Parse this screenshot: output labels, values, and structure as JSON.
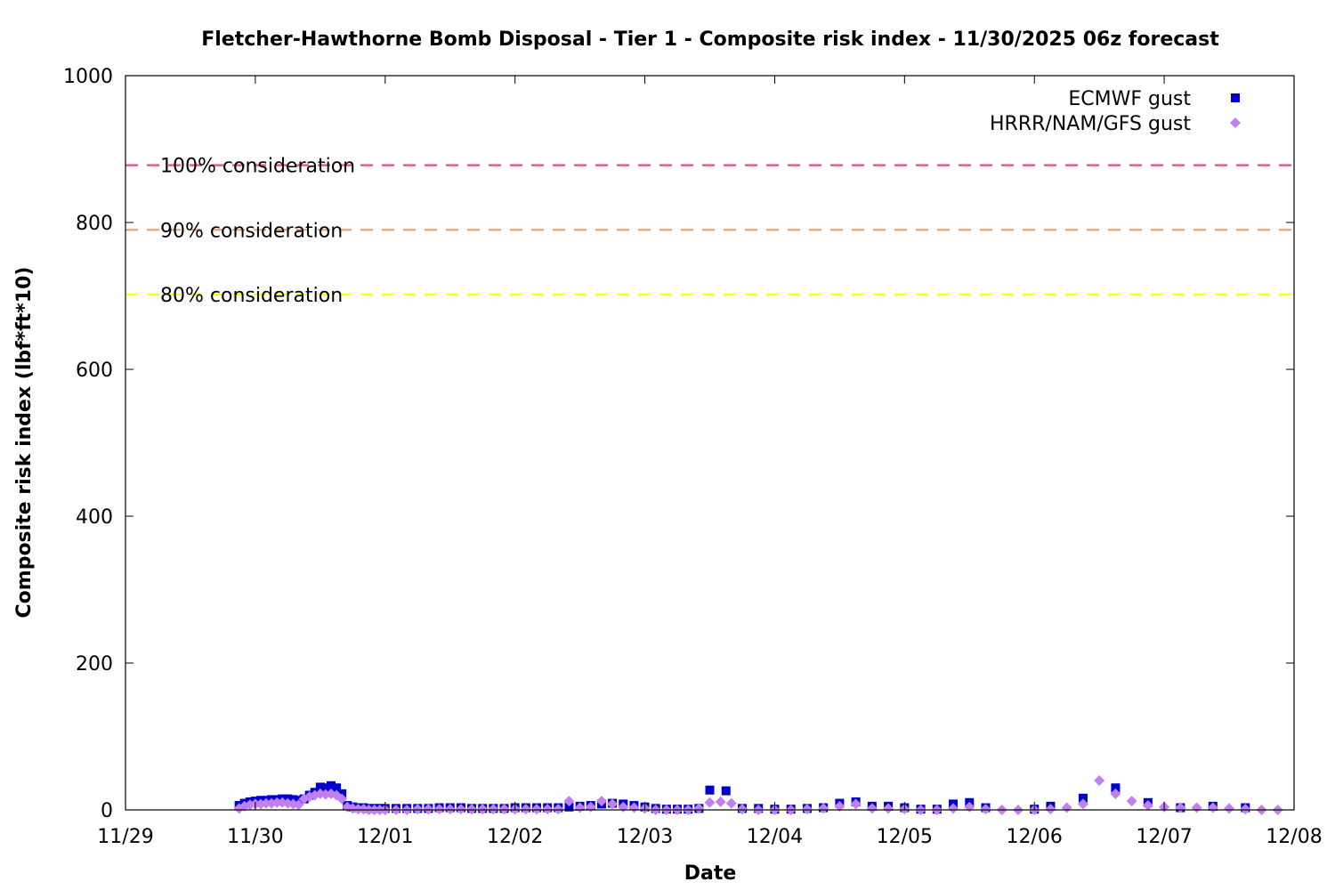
{
  "chart_data": {
    "type": "scatter",
    "title": "Fletcher-Hawthorne Bomb Disposal - Tier 1 - Composite risk index - 11/30/2025 06z forecast",
    "xlabel": "Date",
    "ylabel": "Composite risk index (lbf*ft*10)",
    "x_range": [
      "2025-11-29T00:00",
      "2025-12-08T00:00"
    ],
    "ylim": [
      0,
      1000
    ],
    "x_ticks": [
      "11/29",
      "11/30",
      "12/01",
      "12/02",
      "12/03",
      "12/04",
      "12/05",
      "12/06",
      "12/07",
      "12/08"
    ],
    "y_ticks": [
      "0",
      "200",
      "400",
      "600",
      "800",
      "1000"
    ],
    "grid": false,
    "legend_position": "top-right",
    "reference_lines": [
      {
        "label": "100% consideration",
        "value": 878,
        "color": "#e0607e"
      },
      {
        "label": "90% consideration",
        "value": 790,
        "color": "#f4a878"
      },
      {
        "label": "80% consideration",
        "value": 702,
        "color": "#ffff00"
      }
    ],
    "series": [
      {
        "name": "ECMWF gust",
        "marker": "square",
        "color": "#0000cc",
        "points": [
          [
            "2025-11-29T21:00",
            6
          ],
          [
            "2025-11-29T22:00",
            9
          ],
          [
            "2025-11-29T23:00",
            11
          ],
          [
            "2025-11-30T00:00",
            12
          ],
          [
            "2025-11-30T01:00",
            13
          ],
          [
            "2025-11-30T02:00",
            13
          ],
          [
            "2025-11-30T03:00",
            14
          ],
          [
            "2025-11-30T04:00",
            14
          ],
          [
            "2025-11-30T05:00",
            15
          ],
          [
            "2025-11-30T06:00",
            15
          ],
          [
            "2025-11-30T07:00",
            14
          ],
          [
            "2025-11-30T08:00",
            13
          ],
          [
            "2025-11-30T09:00",
            15
          ],
          [
            "2025-11-30T10:00",
            20
          ],
          [
            "2025-11-30T11:00",
            24
          ],
          [
            "2025-11-30T12:00",
            31
          ],
          [
            "2025-11-30T13:00",
            30
          ],
          [
            "2025-11-30T14:00",
            33
          ],
          [
            "2025-11-30T15:00",
            30
          ],
          [
            "2025-11-30T16:00",
            22
          ],
          [
            "2025-11-30T17:00",
            6
          ],
          [
            "2025-11-30T18:00",
            4
          ],
          [
            "2025-11-30T19:00",
            3
          ],
          [
            "2025-11-30T20:00",
            3
          ],
          [
            "2025-11-30T21:00",
            2
          ],
          [
            "2025-11-30T22:00",
            2
          ],
          [
            "2025-11-30T23:00",
            2
          ],
          [
            "2025-12-01T00:00",
            2
          ],
          [
            "2025-12-01T02:00",
            2
          ],
          [
            "2025-12-01T04:00",
            2
          ],
          [
            "2025-12-01T06:00",
            2
          ],
          [
            "2025-12-01T08:00",
            2
          ],
          [
            "2025-12-01T10:00",
            3
          ],
          [
            "2025-12-01T12:00",
            3
          ],
          [
            "2025-12-01T14:00",
            3
          ],
          [
            "2025-12-01T16:00",
            2
          ],
          [
            "2025-12-01T18:00",
            2
          ],
          [
            "2025-12-01T20:00",
            2
          ],
          [
            "2025-12-01T22:00",
            2
          ],
          [
            "2025-12-02T00:00",
            3
          ],
          [
            "2025-12-02T02:00",
            3
          ],
          [
            "2025-12-02T04:00",
            3
          ],
          [
            "2025-12-02T06:00",
            3
          ],
          [
            "2025-12-02T08:00",
            3
          ],
          [
            "2025-12-02T10:00",
            4
          ],
          [
            "2025-12-02T12:00",
            5
          ],
          [
            "2025-12-02T14:00",
            6
          ],
          [
            "2025-12-02T16:00",
            8
          ],
          [
            "2025-12-02T18:00",
            9
          ],
          [
            "2025-12-02T20:00",
            8
          ],
          [
            "2025-12-02T22:00",
            6
          ],
          [
            "2025-12-03T00:00",
            4
          ],
          [
            "2025-12-03T02:00",
            2
          ],
          [
            "2025-12-03T04:00",
            1
          ],
          [
            "2025-12-03T06:00",
            1
          ],
          [
            "2025-12-03T08:00",
            1
          ],
          [
            "2025-12-03T10:00",
            2
          ],
          [
            "2025-12-03T12:00",
            27
          ],
          [
            "2025-12-03T15:00",
            26
          ],
          [
            "2025-12-03T18:00",
            2
          ],
          [
            "2025-12-03T21:00",
            2
          ],
          [
            "2025-12-04T00:00",
            1
          ],
          [
            "2025-12-04T03:00",
            1
          ],
          [
            "2025-12-04T06:00",
            2
          ],
          [
            "2025-12-04T09:00",
            3
          ],
          [
            "2025-12-04T12:00",
            9
          ],
          [
            "2025-12-04T15:00",
            11
          ],
          [
            "2025-12-04T18:00",
            5
          ],
          [
            "2025-12-04T21:00",
            5
          ],
          [
            "2025-12-05T00:00",
            3
          ],
          [
            "2025-12-05T03:00",
            1
          ],
          [
            "2025-12-05T06:00",
            1
          ],
          [
            "2025-12-05T09:00",
            8
          ],
          [
            "2025-12-05T12:00",
            10
          ],
          [
            "2025-12-05T15:00",
            3
          ],
          [
            "2025-12-06T00:00",
            1
          ],
          [
            "2025-12-06T03:00",
            5
          ],
          [
            "2025-12-06T09:00",
            16
          ],
          [
            "2025-12-06T15:00",
            30
          ],
          [
            "2025-12-06T21:00",
            10
          ],
          [
            "2025-12-07T03:00",
            3
          ],
          [
            "2025-12-07T09:00",
            5
          ],
          [
            "2025-12-07T15:00",
            3
          ]
        ]
      },
      {
        "name": "HRRR/NAM/GFS gust",
        "marker": "diamond",
        "color": "#c080f0",
        "points": [
          [
            "2025-11-29T21:00",
            2
          ],
          [
            "2025-11-29T22:00",
            5
          ],
          [
            "2025-11-29T23:00",
            7
          ],
          [
            "2025-11-30T00:00",
            8
          ],
          [
            "2025-11-30T01:00",
            8
          ],
          [
            "2025-11-30T02:00",
            9
          ],
          [
            "2025-11-30T03:00",
            9
          ],
          [
            "2025-11-30T04:00",
            10
          ],
          [
            "2025-11-30T05:00",
            10
          ],
          [
            "2025-11-30T06:00",
            9
          ],
          [
            "2025-11-30T07:00",
            8
          ],
          [
            "2025-11-30T08:00",
            7
          ],
          [
            "2025-11-30T09:00",
            15
          ],
          [
            "2025-11-30T10:00",
            18
          ],
          [
            "2025-11-30T11:00",
            20
          ],
          [
            "2025-11-30T12:00",
            22
          ],
          [
            "2025-11-30T13:00",
            21
          ],
          [
            "2025-11-30T14:00",
            22
          ],
          [
            "2025-11-30T15:00",
            20
          ],
          [
            "2025-11-30T16:00",
            15
          ],
          [
            "2025-11-30T17:00",
            4
          ],
          [
            "2025-11-30T18:00",
            2
          ],
          [
            "2025-11-30T19:00",
            1
          ],
          [
            "2025-11-30T20:00",
            1
          ],
          [
            "2025-11-30T21:00",
            0
          ],
          [
            "2025-11-30T22:00",
            0
          ],
          [
            "2025-11-30T23:00",
            0
          ],
          [
            "2025-12-01T00:00",
            0
          ],
          [
            "2025-12-01T02:00",
            0
          ],
          [
            "2025-12-01T04:00",
            0
          ],
          [
            "2025-12-01T06:00",
            1
          ],
          [
            "2025-12-01T08:00",
            1
          ],
          [
            "2025-12-01T10:00",
            1
          ],
          [
            "2025-12-01T12:00",
            1
          ],
          [
            "2025-12-01T14:00",
            1
          ],
          [
            "2025-12-01T16:00",
            1
          ],
          [
            "2025-12-01T18:00",
            1
          ],
          [
            "2025-12-01T20:00",
            1
          ],
          [
            "2025-12-01T22:00",
            1
          ],
          [
            "2025-12-02T00:00",
            1
          ],
          [
            "2025-12-02T02:00",
            1
          ],
          [
            "2025-12-02T04:00",
            1
          ],
          [
            "2025-12-02T06:00",
            1
          ],
          [
            "2025-12-02T08:00",
            1
          ],
          [
            "2025-12-02T10:00",
            12
          ],
          [
            "2025-12-02T12:00",
            3
          ],
          [
            "2025-12-02T14:00",
            4
          ],
          [
            "2025-12-02T16:00",
            12
          ],
          [
            "2025-12-02T18:00",
            8
          ],
          [
            "2025-12-02T20:00",
            4
          ],
          [
            "2025-12-02T22:00",
            3
          ],
          [
            "2025-12-03T00:00",
            2
          ],
          [
            "2025-12-03T02:00",
            0
          ],
          [
            "2025-12-03T04:00",
            0
          ],
          [
            "2025-12-03T06:00",
            0
          ],
          [
            "2025-12-03T08:00",
            0
          ],
          [
            "2025-12-03T10:00",
            2
          ],
          [
            "2025-12-03T12:00",
            10
          ],
          [
            "2025-12-03T14:00",
            11
          ],
          [
            "2025-12-03T16:00",
            9
          ],
          [
            "2025-12-03T18:00",
            1
          ],
          [
            "2025-12-03T21:00",
            0
          ],
          [
            "2025-12-04T00:00",
            0
          ],
          [
            "2025-12-04T03:00",
            0
          ],
          [
            "2025-12-04T06:00",
            1
          ],
          [
            "2025-12-04T09:00",
            2
          ],
          [
            "2025-12-04T12:00",
            5
          ],
          [
            "2025-12-04T15:00",
            8
          ],
          [
            "2025-12-04T18:00",
            2
          ],
          [
            "2025-12-04T21:00",
            2
          ],
          [
            "2025-12-05T00:00",
            1
          ],
          [
            "2025-12-05T03:00",
            0
          ],
          [
            "2025-12-05T06:00",
            0
          ],
          [
            "2025-12-05T09:00",
            2
          ],
          [
            "2025-12-05T12:00",
            4
          ],
          [
            "2025-12-05T15:00",
            1
          ],
          [
            "2025-12-05T18:00",
            0
          ],
          [
            "2025-12-05T21:00",
            0
          ],
          [
            "2025-12-06T00:00",
            0
          ],
          [
            "2025-12-06T03:00",
            1
          ],
          [
            "2025-12-06T06:00",
            3
          ],
          [
            "2025-12-06T09:00",
            8
          ],
          [
            "2025-12-06T12:00",
            40
          ],
          [
            "2025-12-06T15:00",
            22
          ],
          [
            "2025-12-06T18:00",
            12
          ],
          [
            "2025-12-06T21:00",
            6
          ],
          [
            "2025-12-07T00:00",
            4
          ],
          [
            "2025-12-07T03:00",
            3
          ],
          [
            "2025-12-07T06:00",
            3
          ],
          [
            "2025-12-07T09:00",
            3
          ],
          [
            "2025-12-07T12:00",
            2
          ],
          [
            "2025-12-07T15:00",
            1
          ],
          [
            "2025-12-07T18:00",
            0
          ],
          [
            "2025-12-07T21:00",
            0
          ]
        ]
      }
    ]
  }
}
